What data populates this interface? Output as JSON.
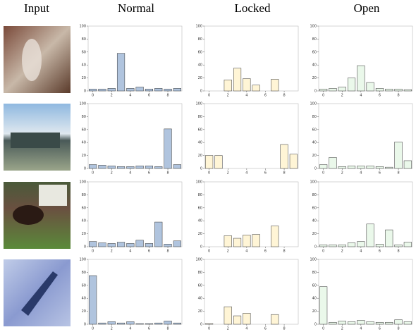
{
  "columns": [
    "Input",
    "Normal",
    "Locked",
    "Open"
  ],
  "chart_data": [
    {
      "type": "bar",
      "x": [
        0,
        1,
        2,
        3,
        4,
        5,
        6,
        7,
        8,
        9
      ],
      "values": [
        3,
        3,
        4,
        58,
        4,
        6,
        3,
        4,
        3,
        4
      ],
      "color": "#b0c4de",
      "xlim": [
        -0.5,
        9.5
      ],
      "ylim": [
        0,
        100
      ],
      "xticks": [
        0,
        2,
        4,
        6,
        8
      ],
      "yticks": [
        0,
        20,
        40,
        60,
        80,
        100
      ]
    },
    {
      "type": "bar",
      "x": [
        0,
        1,
        2,
        3,
        4,
        5,
        6,
        7,
        8,
        9
      ],
      "values": [
        0,
        0,
        17,
        35,
        19,
        9,
        0,
        18,
        0,
        0
      ],
      "color": "#fff5d6",
      "xlim": [
        -0.5,
        9.5
      ],
      "ylim": [
        0,
        100
      ],
      "xticks": [
        0,
        2,
        4,
        6,
        8
      ],
      "yticks": [
        0,
        20,
        40,
        60,
        80,
        100
      ]
    },
    {
      "type": "bar",
      "x": [
        0,
        1,
        2,
        3,
        4,
        5,
        6,
        7,
        8,
        9
      ],
      "values": [
        3,
        4,
        6,
        20,
        39,
        13,
        4,
        3,
        3,
        2
      ],
      "color": "#eaf8ea",
      "xlim": [
        -0.5,
        9.5
      ],
      "ylim": [
        0,
        100
      ],
      "xticks": [
        0,
        2,
        4,
        6,
        8
      ],
      "yticks": [
        0,
        20,
        40,
        60,
        80,
        100
      ]
    },
    {
      "type": "bar",
      "x": [
        0,
        1,
        2,
        3,
        4,
        5,
        6,
        7,
        8,
        9
      ],
      "values": [
        6,
        5,
        4,
        3,
        3,
        4,
        4,
        3,
        61,
        6
      ],
      "color": "#b0c4de",
      "xlim": [
        -0.5,
        9.5
      ],
      "ylim": [
        0,
        100
      ],
      "xticks": [
        0,
        2,
        4,
        6,
        8
      ],
      "yticks": [
        0,
        20,
        40,
        60,
        80,
        100
      ]
    },
    {
      "type": "bar",
      "x": [
        0,
        1,
        2,
        3,
        4,
        5,
        6,
        7,
        8,
        9
      ],
      "values": [
        20,
        20,
        0,
        0,
        0,
        0,
        0,
        0,
        37,
        22
      ],
      "color": "#fff5d6",
      "xlim": [
        -0.5,
        9.5
      ],
      "ylim": [
        0,
        100
      ],
      "xticks": [
        0,
        2,
        4,
        6,
        8
      ],
      "yticks": [
        0,
        20,
        40,
        60,
        80,
        100
      ]
    },
    {
      "type": "bar",
      "x": [
        0,
        1,
        2,
        3,
        4,
        5,
        6,
        7,
        8,
        9
      ],
      "values": [
        6,
        17,
        3,
        4,
        4,
        4,
        3,
        2,
        41,
        12
      ],
      "color": "#eaf8ea",
      "xlim": [
        -0.5,
        9.5
      ],
      "ylim": [
        0,
        100
      ],
      "xticks": [
        0,
        2,
        4,
        6,
        8
      ],
      "yticks": [
        0,
        20,
        40,
        60,
        80,
        100
      ]
    },
    {
      "type": "bar",
      "x": [
        0,
        1,
        2,
        3,
        4,
        5,
        6,
        7,
        8,
        9
      ],
      "values": [
        8,
        6,
        5,
        7,
        5,
        10,
        5,
        38,
        4,
        9
      ],
      "color": "#b0c4de",
      "xlim": [
        -0.5,
        9.5
      ],
      "ylim": [
        0,
        100
      ],
      "xticks": [
        0,
        2,
        4,
        6,
        8
      ],
      "yticks": [
        0,
        20,
        40,
        60,
        80,
        100
      ]
    },
    {
      "type": "bar",
      "x": [
        0,
        1,
        2,
        3,
        4,
        5,
        6,
        7,
        8,
        9
      ],
      "values": [
        0,
        0,
        17,
        13,
        18,
        19,
        0,
        32,
        0,
        0
      ],
      "color": "#fff5d6",
      "xlim": [
        -0.5,
        9.5
      ],
      "ylim": [
        0,
        100
      ],
      "xticks": [
        0,
        2,
        4,
        6,
        8
      ],
      "yticks": [
        0,
        20,
        40,
        60,
        80,
        100
      ]
    },
    {
      "type": "bar",
      "x": [
        0,
        1,
        2,
        3,
        4,
        5,
        6,
        7,
        8,
        9
      ],
      "values": [
        3,
        3,
        3,
        6,
        8,
        35,
        4,
        26,
        3,
        7
      ],
      "color": "#eaf8ea",
      "xlim": [
        -0.5,
        9.5
      ],
      "ylim": [
        0,
        100
      ],
      "xticks": [
        0,
        2,
        4,
        6,
        8
      ],
      "yticks": [
        0,
        20,
        40,
        60,
        80,
        100
      ]
    },
    {
      "type": "bar",
      "x": [
        0,
        1,
        2,
        3,
        4,
        5,
        6,
        7,
        8,
        9
      ],
      "values": [
        75,
        2,
        4,
        2,
        4,
        1,
        1,
        2,
        5,
        2
      ],
      "color": "#b0c4de",
      "xlim": [
        -0.5,
        9.5
      ],
      "ylim": [
        0,
        100
      ],
      "xticks": [
        0,
        2,
        4,
        6,
        8
      ],
      "yticks": [
        0,
        20,
        40,
        60,
        80,
        100
      ]
    },
    {
      "type": "bar",
      "x": [
        0,
        1,
        2,
        3,
        4,
        5,
        6,
        7,
        8,
        9
      ],
      "values": [
        1,
        0,
        27,
        13,
        17,
        0,
        0,
        15,
        0,
        0
      ],
      "color": "#fff5d6",
      "xlim": [
        -0.5,
        9.5
      ],
      "ylim": [
        0,
        100
      ],
      "xticks": [
        0,
        2,
        4,
        6,
        8
      ],
      "yticks": [
        0,
        20,
        40,
        60,
        80,
        100
      ]
    },
    {
      "type": "bar",
      "x": [
        0,
        1,
        2,
        3,
        4,
        5,
        6,
        7,
        8,
        9
      ],
      "values": [
        58,
        3,
        5,
        4,
        6,
        4,
        3,
        3,
        7,
        4
      ],
      "color": "#eaf8ea",
      "xlim": [
        -0.5,
        9.5
      ],
      "ylim": [
        0,
        100
      ],
      "xticks": [
        0,
        2,
        4,
        6,
        8
      ],
      "yticks": [
        0,
        20,
        40,
        60,
        80,
        100
      ]
    }
  ]
}
